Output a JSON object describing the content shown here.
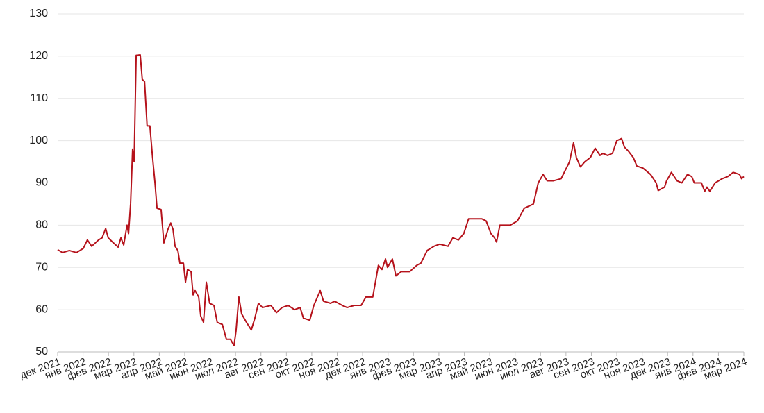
{
  "chart_data": {
    "type": "line",
    "x": [
      0,
      0.19,
      0.46,
      0.74,
      1.01,
      1.17,
      1.34,
      1.61,
      1.75,
      1.89,
      1.99,
      2.16,
      2.38,
      2.49,
      2.6,
      2.73,
      2.79,
      2.87,
      2.95,
      3.01,
      3.09,
      3.25,
      3.33,
      3.42,
      3.52,
      3.63,
      3.72,
      3.83,
      3.91,
      4.07,
      4.18,
      4.34,
      4.45,
      4.54,
      4.62,
      4.73,
      4.81,
      4.95,
      5.03,
      5.11,
      5.25,
      5.33,
      5.41,
      5.55,
      5.63,
      5.74,
      5.85,
      5.98,
      6.15,
      6.28,
      6.48,
      6.64,
      6.8,
      6.94,
      7.02,
      7.13,
      7.24,
      7.43,
      7.62,
      7.76,
      7.9,
      8.06,
      8.39,
      8.61,
      8.83,
      9.07,
      9.32,
      9.54,
      9.67,
      9.92,
      10.08,
      10.33,
      10.46,
      10.74,
      10.9,
      11.2,
      11.39,
      11.67,
      11.94,
      12.13,
      12.4,
      12.62,
      12.76,
      12.9,
      12.98,
      13.17,
      13.31,
      13.52,
      13.85,
      14.13,
      14.29,
      14.54,
      14.81,
      15.03,
      15.36,
      15.55,
      15.77,
      15.98,
      16.17,
      16.37,
      16.69,
      16.86,
      17.05,
      17.19,
      17.27,
      17.4,
      17.81,
      18.09,
      18.36,
      18.72,
      18.91,
      19.1,
      19.26,
      19.51,
      19.81,
      20.14,
      20.3,
      20.41,
      20.57,
      20.74,
      20.96,
      21.15,
      21.34,
      21.45,
      21.64,
      21.83,
      22,
      22.19,
      22.3,
      22.46,
      22.65,
      22.79,
      23.03,
      23.33,
      23.55,
      23.63,
      23.88,
      23.96,
      24.15,
      24.37,
      24.56,
      24.78,
      24.95,
      25.05,
      25.33,
      25.46,
      25.55,
      25.66,
      25.87,
      26.15,
      26.37,
      26.58,
      26.83,
      26.91,
      27
    ],
    "series": [
      {
        "color": "#b5121b",
        "values": [
          74.2,
          73.5,
          74,
          73.5,
          74.5,
          76.5,
          75,
          76.5,
          77,
          79.2,
          77,
          76,
          74.8,
          77,
          75.3,
          80,
          78,
          85,
          98,
          95,
          120.2,
          120.3,
          114.5,
          114,
          103.5,
          103.5,
          97,
          90,
          84,
          83.7,
          75.8,
          79,
          80.5,
          79,
          75,
          74,
          71,
          71,
          66.5,
          69.5,
          69,
          63.5,
          64.5,
          63,
          58.5,
          57,
          66.5,
          61.5,
          61,
          57,
          56.5,
          53,
          53,
          51.5,
          55,
          63,
          59,
          57,
          55.2,
          58,
          61.5,
          60.5,
          61,
          59.3,
          60.5,
          61,
          60,
          60.5,
          58,
          57.5,
          61,
          64.5,
          62,
          61.5,
          62,
          61,
          60.5,
          61,
          61,
          63,
          63,
          70.5,
          69.5,
          72,
          70,
          72,
          68,
          69,
          69,
          70.5,
          71,
          74,
          75,
          75.5,
          75,
          77,
          76.5,
          78,
          81.5,
          81.5,
          81.5,
          81,
          78,
          77,
          76,
          80,
          80,
          81,
          84,
          85,
          90,
          92,
          90.5,
          90.5,
          91,
          95,
          99.5,
          96,
          93.8,
          95,
          96,
          98.2,
          96.5,
          97,
          96.5,
          97,
          100,
          100.5,
          98.5,
          97.5,
          96,
          94,
          93.5,
          92,
          90,
          88.2,
          89,
          90.5,
          92.5,
          90.5,
          90,
          92,
          91.5,
          90,
          90,
          88,
          89,
          88,
          90,
          91,
          91.5,
          92.5,
          92,
          91,
          91.5
        ]
      }
    ],
    "xlim": [
      0,
      27
    ],
    "xticks": [
      {
        "value": 0,
        "label": "дек 2021"
      },
      {
        "value": 1,
        "label": "янв 2022"
      },
      {
        "value": 2,
        "label": "фев 2022"
      },
      {
        "value": 3,
        "label": "мар 2022"
      },
      {
        "value": 4,
        "label": "апр 2022"
      },
      {
        "value": 5,
        "label": "май 2022"
      },
      {
        "value": 6,
        "label": "июн 2022"
      },
      {
        "value": 7,
        "label": "июл 2022"
      },
      {
        "value": 8,
        "label": "авг 2022"
      },
      {
        "value": 9,
        "label": "сен 2022"
      },
      {
        "value": 10,
        "label": "окт 2022"
      },
      {
        "value": 11,
        "label": "ноя 2022"
      },
      {
        "value": 12,
        "label": "дек 2022"
      },
      {
        "value": 13,
        "label": "янв 2023"
      },
      {
        "value": 14,
        "label": "фев 2023"
      },
      {
        "value": 15,
        "label": "мар 2023"
      },
      {
        "value": 16,
        "label": "апр 2023"
      },
      {
        "value": 17,
        "label": "май 2023"
      },
      {
        "value": 18,
        "label": "июн 2023"
      },
      {
        "value": 19,
        "label": "июл 2023"
      },
      {
        "value": 20,
        "label": "авг 2023"
      },
      {
        "value": 21,
        "label": "сен 2023"
      },
      {
        "value": 22,
        "label": "окт 2023"
      },
      {
        "value": 23,
        "label": "ноя 2023"
      },
      {
        "value": 24,
        "label": "дек 2023"
      },
      {
        "value": 25,
        "label": "янв 2024"
      },
      {
        "value": 26,
        "label": "фев 2024"
      },
      {
        "value": 27,
        "label": "мар 2024"
      }
    ],
    "ylim": [
      50,
      130
    ],
    "yticks": [
      50,
      60,
      70,
      80,
      90,
      100,
      110,
      120,
      130
    ],
    "grid": true
  }
}
